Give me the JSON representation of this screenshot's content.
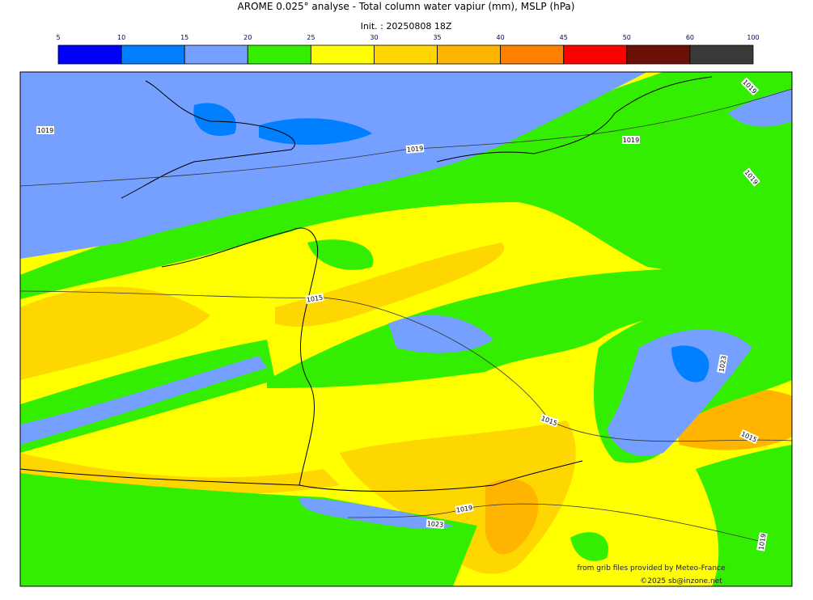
{
  "title": "AROME 0.025° analyse - Total column water vapiur (mm), MSLP (hPa)",
  "subtitle": "Init. : 20250808 18Z",
  "colorbar": {
    "ticks": [
      "5",
      "10",
      "15",
      "20",
      "25",
      "30",
      "35",
      "40",
      "45",
      "50",
      "60",
      "100"
    ],
    "colors": [
      "#0000ff",
      "#0080ff",
      "#75a0ff",
      "#33ee00",
      "#ffff00",
      "#ffd700",
      "#ffb400",
      "#ff8000",
      "#ff0000",
      "#6b1005",
      "#3a3a3a"
    ]
  },
  "contour_labels": [
    "1019",
    "1019",
    "1019",
    "1019",
    "1019",
    "1015",
    "1023",
    "1015",
    "1015",
    "1019",
    "1023",
    "1019"
  ],
  "credits": [
    "from grib files provided by Meteo-France",
    "©2025 sb@inzone.net"
  ]
}
